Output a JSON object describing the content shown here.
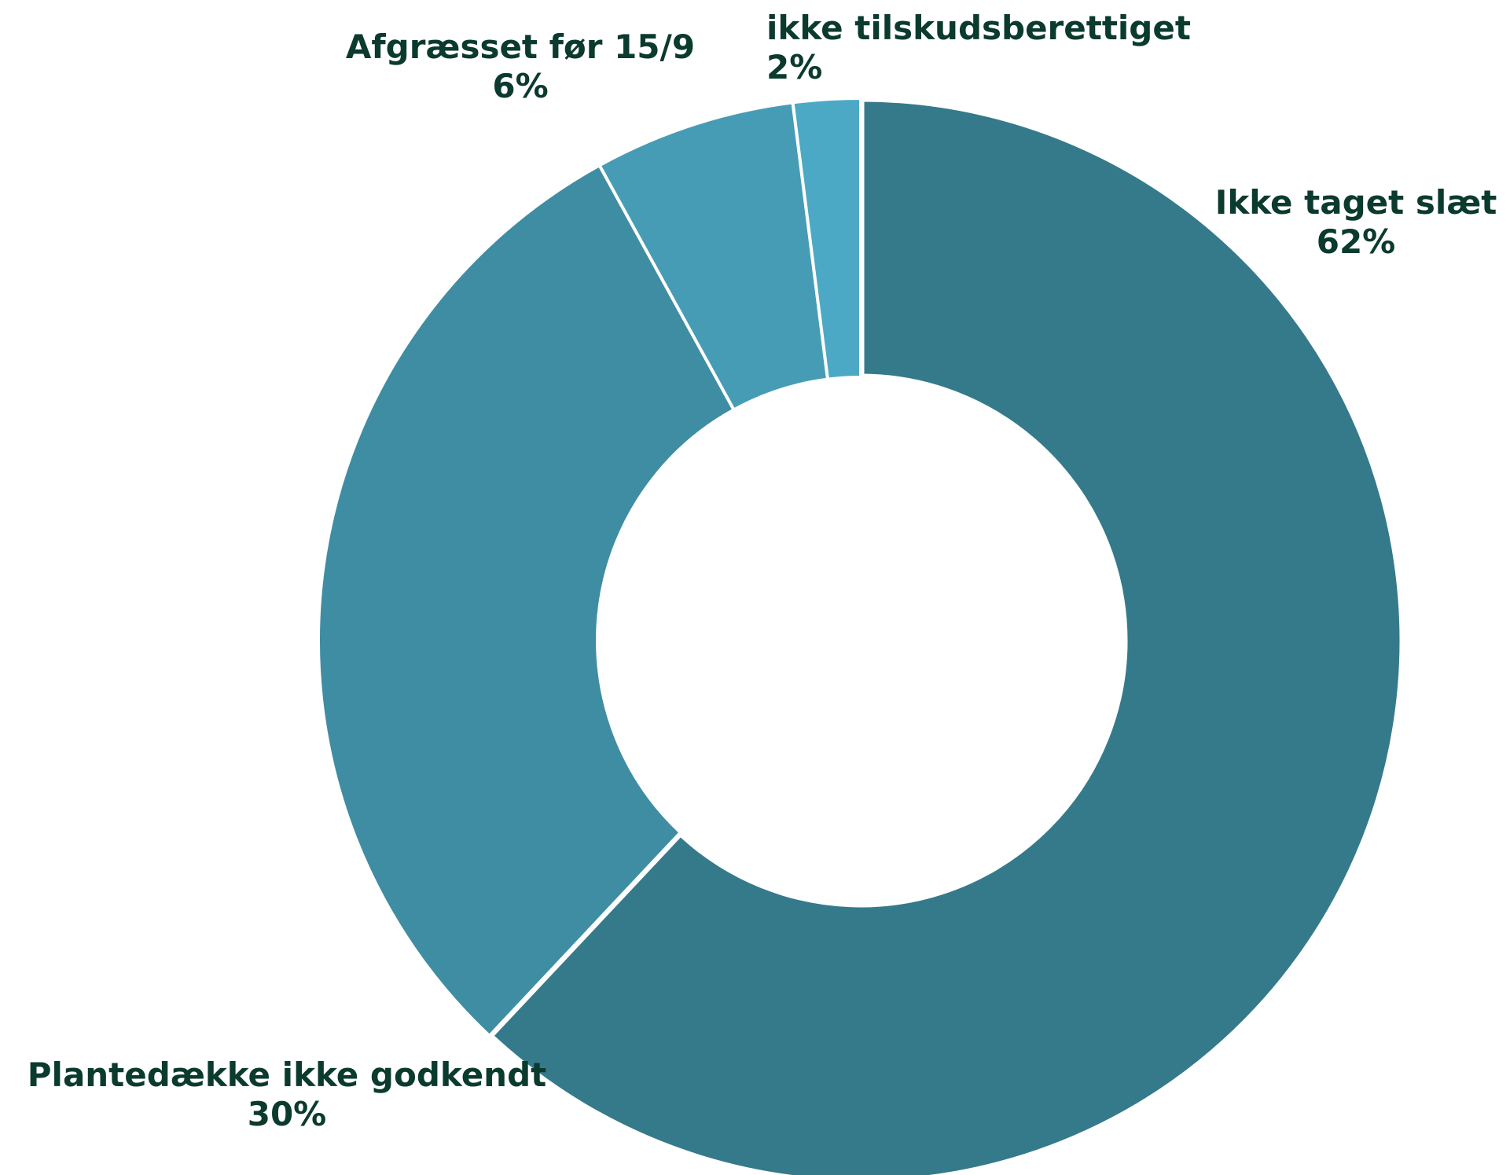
{
  "chart_data": {
    "type": "pie",
    "variant": "donut",
    "title": "",
    "slices": [
      {
        "label": "Ikke taget slæt",
        "value": 62,
        "value_label": "62%",
        "color": "#357a8b"
      },
      {
        "label": "Plantedække ikke godkendt",
        "value": 30,
        "value_label": "30%",
        "color": "#3f8da3"
      },
      {
        "label": "Afgræsset før 15/9",
        "value": 6,
        "value_label": "6%",
        "color": "#479cb5"
      },
      {
        "label": "ikke tilskudsberettiget",
        "value": 2,
        "value_label": "2%",
        "color": "#4ca9c5"
      }
    ],
    "label_color": "#0b3a2e",
    "background": "#ffffff"
  }
}
